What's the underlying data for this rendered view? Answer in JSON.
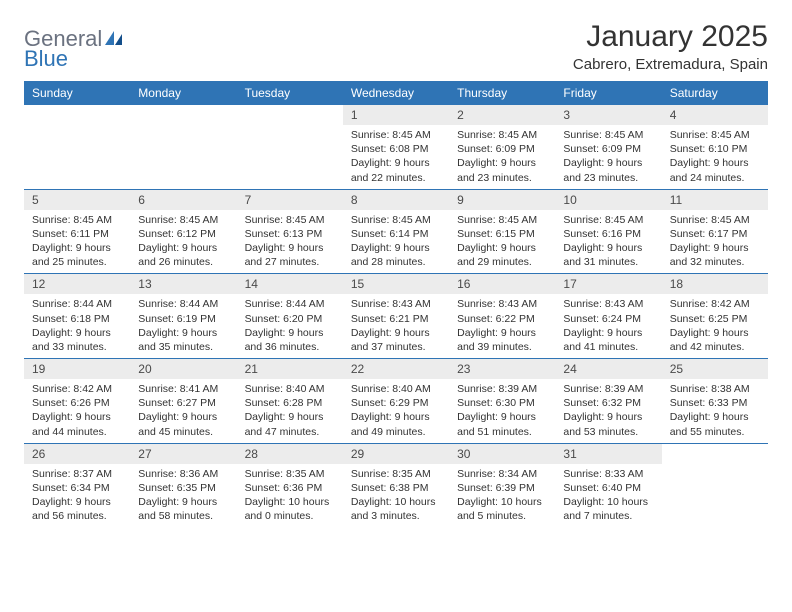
{
  "logo": {
    "text1": "General",
    "text2": "Blue"
  },
  "title": "January 2025",
  "location": "Cabrero, Extremadura, Spain",
  "colors": {
    "header_bg": "#2f74b5",
    "header_text": "#ffffff",
    "daynum_bg": "#ececec",
    "border": "#2f74b5",
    "logo_gray": "#6b7280",
    "logo_blue": "#2f74b5"
  },
  "weekdays": [
    "Sunday",
    "Monday",
    "Tuesday",
    "Wednesday",
    "Thursday",
    "Friday",
    "Saturday"
  ],
  "weeks": [
    [
      {
        "day": "",
        "sunrise": "",
        "sunset": "",
        "daylight": ""
      },
      {
        "day": "",
        "sunrise": "",
        "sunset": "",
        "daylight": ""
      },
      {
        "day": "",
        "sunrise": "",
        "sunset": "",
        "daylight": ""
      },
      {
        "day": "1",
        "sunrise": "Sunrise: 8:45 AM",
        "sunset": "Sunset: 6:08 PM",
        "daylight": "Daylight: 9 hours and 22 minutes."
      },
      {
        "day": "2",
        "sunrise": "Sunrise: 8:45 AM",
        "sunset": "Sunset: 6:09 PM",
        "daylight": "Daylight: 9 hours and 23 minutes."
      },
      {
        "day": "3",
        "sunrise": "Sunrise: 8:45 AM",
        "sunset": "Sunset: 6:09 PM",
        "daylight": "Daylight: 9 hours and 23 minutes."
      },
      {
        "day": "4",
        "sunrise": "Sunrise: 8:45 AM",
        "sunset": "Sunset: 6:10 PM",
        "daylight": "Daylight: 9 hours and 24 minutes."
      }
    ],
    [
      {
        "day": "5",
        "sunrise": "Sunrise: 8:45 AM",
        "sunset": "Sunset: 6:11 PM",
        "daylight": "Daylight: 9 hours and 25 minutes."
      },
      {
        "day": "6",
        "sunrise": "Sunrise: 8:45 AM",
        "sunset": "Sunset: 6:12 PM",
        "daylight": "Daylight: 9 hours and 26 minutes."
      },
      {
        "day": "7",
        "sunrise": "Sunrise: 8:45 AM",
        "sunset": "Sunset: 6:13 PM",
        "daylight": "Daylight: 9 hours and 27 minutes."
      },
      {
        "day": "8",
        "sunrise": "Sunrise: 8:45 AM",
        "sunset": "Sunset: 6:14 PM",
        "daylight": "Daylight: 9 hours and 28 minutes."
      },
      {
        "day": "9",
        "sunrise": "Sunrise: 8:45 AM",
        "sunset": "Sunset: 6:15 PM",
        "daylight": "Daylight: 9 hours and 29 minutes."
      },
      {
        "day": "10",
        "sunrise": "Sunrise: 8:45 AM",
        "sunset": "Sunset: 6:16 PM",
        "daylight": "Daylight: 9 hours and 31 minutes."
      },
      {
        "day": "11",
        "sunrise": "Sunrise: 8:45 AM",
        "sunset": "Sunset: 6:17 PM",
        "daylight": "Daylight: 9 hours and 32 minutes."
      }
    ],
    [
      {
        "day": "12",
        "sunrise": "Sunrise: 8:44 AM",
        "sunset": "Sunset: 6:18 PM",
        "daylight": "Daylight: 9 hours and 33 minutes."
      },
      {
        "day": "13",
        "sunrise": "Sunrise: 8:44 AM",
        "sunset": "Sunset: 6:19 PM",
        "daylight": "Daylight: 9 hours and 35 minutes."
      },
      {
        "day": "14",
        "sunrise": "Sunrise: 8:44 AM",
        "sunset": "Sunset: 6:20 PM",
        "daylight": "Daylight: 9 hours and 36 minutes."
      },
      {
        "day": "15",
        "sunrise": "Sunrise: 8:43 AM",
        "sunset": "Sunset: 6:21 PM",
        "daylight": "Daylight: 9 hours and 37 minutes."
      },
      {
        "day": "16",
        "sunrise": "Sunrise: 8:43 AM",
        "sunset": "Sunset: 6:22 PM",
        "daylight": "Daylight: 9 hours and 39 minutes."
      },
      {
        "day": "17",
        "sunrise": "Sunrise: 8:43 AM",
        "sunset": "Sunset: 6:24 PM",
        "daylight": "Daylight: 9 hours and 41 minutes."
      },
      {
        "day": "18",
        "sunrise": "Sunrise: 8:42 AM",
        "sunset": "Sunset: 6:25 PM",
        "daylight": "Daylight: 9 hours and 42 minutes."
      }
    ],
    [
      {
        "day": "19",
        "sunrise": "Sunrise: 8:42 AM",
        "sunset": "Sunset: 6:26 PM",
        "daylight": "Daylight: 9 hours and 44 minutes."
      },
      {
        "day": "20",
        "sunrise": "Sunrise: 8:41 AM",
        "sunset": "Sunset: 6:27 PM",
        "daylight": "Daylight: 9 hours and 45 minutes."
      },
      {
        "day": "21",
        "sunrise": "Sunrise: 8:40 AM",
        "sunset": "Sunset: 6:28 PM",
        "daylight": "Daylight: 9 hours and 47 minutes."
      },
      {
        "day": "22",
        "sunrise": "Sunrise: 8:40 AM",
        "sunset": "Sunset: 6:29 PM",
        "daylight": "Daylight: 9 hours and 49 minutes."
      },
      {
        "day": "23",
        "sunrise": "Sunrise: 8:39 AM",
        "sunset": "Sunset: 6:30 PM",
        "daylight": "Daylight: 9 hours and 51 minutes."
      },
      {
        "day": "24",
        "sunrise": "Sunrise: 8:39 AM",
        "sunset": "Sunset: 6:32 PM",
        "daylight": "Daylight: 9 hours and 53 minutes."
      },
      {
        "day": "25",
        "sunrise": "Sunrise: 8:38 AM",
        "sunset": "Sunset: 6:33 PM",
        "daylight": "Daylight: 9 hours and 55 minutes."
      }
    ],
    [
      {
        "day": "26",
        "sunrise": "Sunrise: 8:37 AM",
        "sunset": "Sunset: 6:34 PM",
        "daylight": "Daylight: 9 hours and 56 minutes."
      },
      {
        "day": "27",
        "sunrise": "Sunrise: 8:36 AM",
        "sunset": "Sunset: 6:35 PM",
        "daylight": "Daylight: 9 hours and 58 minutes."
      },
      {
        "day": "28",
        "sunrise": "Sunrise: 8:35 AM",
        "sunset": "Sunset: 6:36 PM",
        "daylight": "Daylight: 10 hours and 0 minutes."
      },
      {
        "day": "29",
        "sunrise": "Sunrise: 8:35 AM",
        "sunset": "Sunset: 6:38 PM",
        "daylight": "Daylight: 10 hours and 3 minutes."
      },
      {
        "day": "30",
        "sunrise": "Sunrise: 8:34 AM",
        "sunset": "Sunset: 6:39 PM",
        "daylight": "Daylight: 10 hours and 5 minutes."
      },
      {
        "day": "31",
        "sunrise": "Sunrise: 8:33 AM",
        "sunset": "Sunset: 6:40 PM",
        "daylight": "Daylight: 10 hours and 7 minutes."
      },
      {
        "day": "",
        "sunrise": "",
        "sunset": "",
        "daylight": ""
      }
    ]
  ]
}
